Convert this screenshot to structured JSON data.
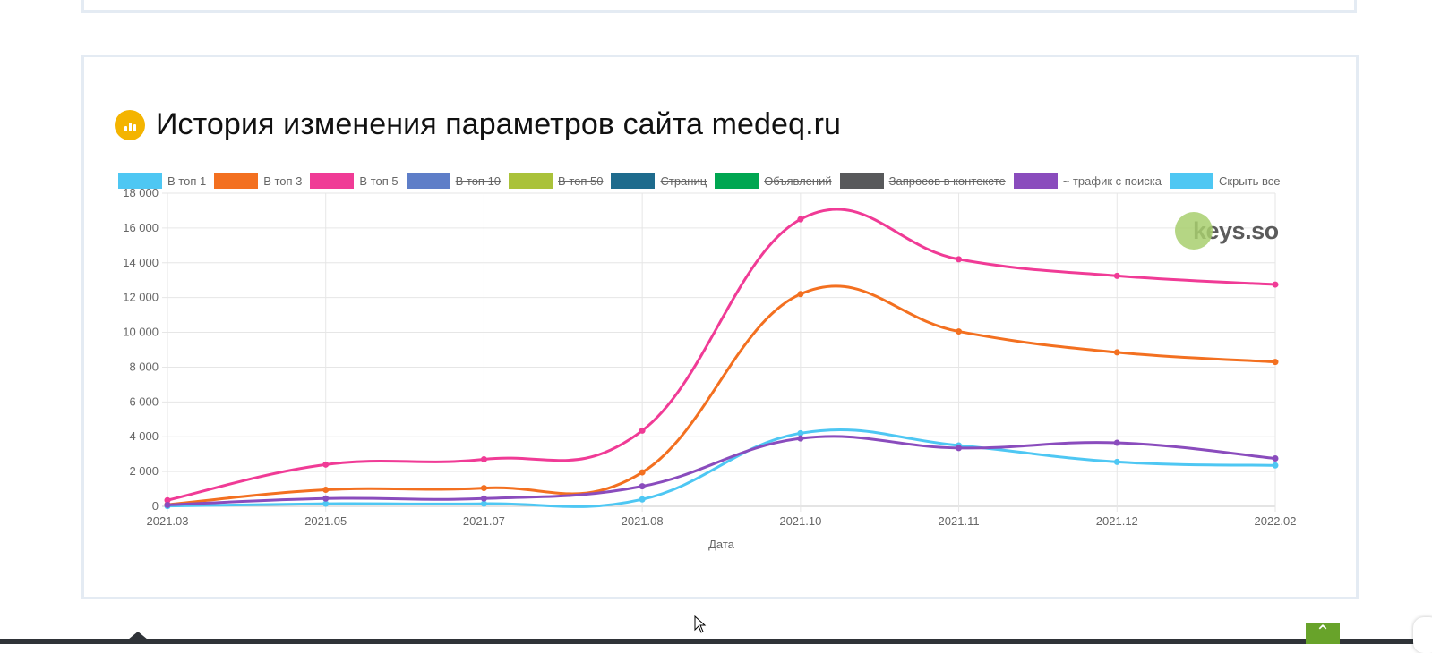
{
  "title": "История изменения параметров сайта medeq.ru",
  "title_icon": "bar-chart-icon",
  "brand": {
    "logo_text": "keys.so"
  },
  "legend": [
    {
      "label": "В топ 1",
      "color": "#4ec7f3",
      "hidden": false
    },
    {
      "label": "В топ 3",
      "color": "#f37020",
      "hidden": false
    },
    {
      "label": "В топ 5",
      "color": "#f03b96",
      "hidden": false
    },
    {
      "label": "В топ 10",
      "color": "#5e7ec8",
      "hidden": true
    },
    {
      "label": "В топ 50",
      "color": "#aac23a",
      "hidden": true
    },
    {
      "label": "Страниц",
      "color": "#1e6b8d",
      "hidden": true
    },
    {
      "label": "Объявлений",
      "color": "#00a651",
      "hidden": true
    },
    {
      "label": "Запросов в контексте",
      "color": "#58595b",
      "hidden": true
    },
    {
      "label": "~ трафик с поиска",
      "color": "#8a4cbd",
      "hidden": false
    },
    {
      "label": "Скрыть все",
      "color": "#4ec7f3",
      "hidden": false
    }
  ],
  "chart_data": {
    "type": "line",
    "title": "История изменения параметров сайта medeq.ru",
    "xlabel": "Дата",
    "ylabel": "",
    "categories": [
      "2021.03",
      "2021.05",
      "2021.07",
      "2021.08",
      "2021.10",
      "2021.11",
      "2021.12",
      "2022.02"
    ],
    "ylim": [
      0,
      18000
    ],
    "yticks": [
      0,
      2000,
      4000,
      6000,
      8000,
      10000,
      12000,
      14000,
      16000,
      18000
    ],
    "ytick_labels": [
      "0",
      "2 000",
      "4 000",
      "6 000",
      "8 000",
      "10 000",
      "12 000",
      "14 000",
      "16 000",
      "18 000"
    ],
    "grid": true,
    "legend_position": "top-left",
    "series": [
      {
        "name": "В топ 1",
        "color": "#4ec7f3",
        "values": [
          20,
          150,
          150,
          400,
          4200,
          3500,
          2550,
          2350
        ]
      },
      {
        "name": "В топ 3",
        "color": "#f37020",
        "values": [
          100,
          950,
          1050,
          1950,
          12200,
          10050,
          8850,
          8300
        ]
      },
      {
        "name": "В топ 5",
        "color": "#f03b96",
        "values": [
          350,
          2400,
          2700,
          4350,
          16500,
          14200,
          13250,
          12750
        ]
      },
      {
        "name": "~ трафик с поиска",
        "color": "#8a4cbd",
        "values": [
          80,
          450,
          450,
          1150,
          3900,
          3350,
          3650,
          2750
        ]
      }
    ]
  }
}
